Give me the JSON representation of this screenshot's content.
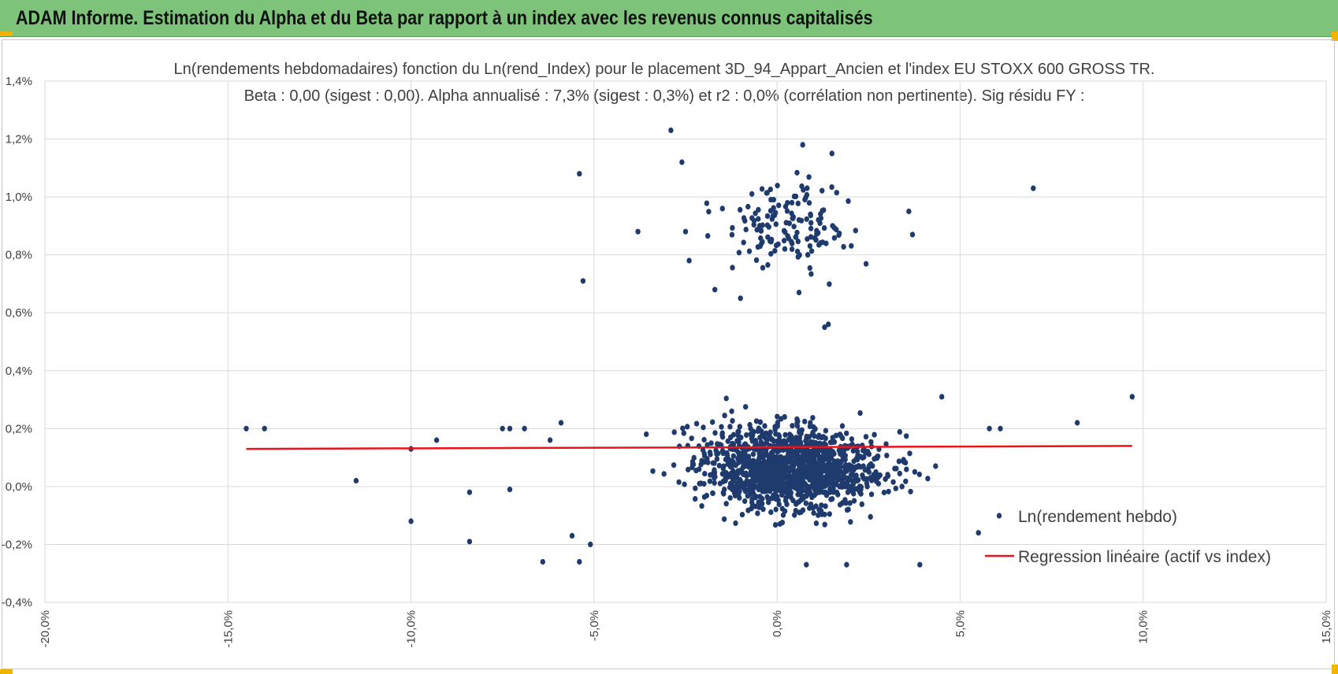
{
  "header": {
    "title": "ADAM Informe. Estimation du Alpha et du Beta par rapport à un index avec les revenus connus capitalisés"
  },
  "colors": {
    "header_bg": "#7dc47a",
    "points": "#1f3b6e",
    "regression": "#e8141b",
    "grid": "#d9d9d9",
    "corner": "#f0b400"
  },
  "chart_data": {
    "type": "scatter",
    "title": "Ln(rendements hebdomadaires) fonction du Ln(rend_Index) pour le placement 3D_94_Appart_Ancien et l'index EU STOXX 600 GROSS TR.",
    "subtitle": "Beta : 0,00 (sigest : 0,00). Alpha annualisé : 7,3% (sigest : 0,3%) et r2 : 0,0% (corrélation non pertinente). Sig résidu FY :",
    "xlabel": "",
    "ylabel": "",
    "xlim": [
      -20,
      15
    ],
    "ylim": [
      -0.4,
      1.4
    ],
    "x_ticks": [
      "-20,0%",
      "-15,0%",
      "-10,0%",
      "-5,0%",
      "0,0%",
      "5,0%",
      "10,0%",
      "15,0%"
    ],
    "y_ticks": [
      "-0,4%",
      "-0,2%",
      "0,0%",
      "0,2%",
      "0,4%",
      "0,6%",
      "0,8%",
      "1,0%",
      "1,2%",
      "1,4%"
    ],
    "grid": true,
    "legend_position": "bottom-right",
    "series": [
      {
        "name": "Ln(rendement hebdo)",
        "kind": "scatter",
        "points_sample": [
          [
            -14.5,
            0.2
          ],
          [
            -14.0,
            0.2
          ],
          [
            -11.5,
            0.02
          ],
          [
            -10.0,
            0.13
          ],
          [
            -10.0,
            -0.12
          ],
          [
            -9.3,
            0.16
          ],
          [
            -8.4,
            -0.02
          ],
          [
            -8.4,
            -0.19
          ],
          [
            -7.5,
            0.2
          ],
          [
            -7.3,
            0.2
          ],
          [
            -7.3,
            -0.01
          ],
          [
            -6.9,
            0.2
          ],
          [
            -6.4,
            -0.26
          ],
          [
            -6.2,
            0.16
          ],
          [
            -5.9,
            0.22
          ],
          [
            -5.6,
            -0.17
          ],
          [
            -5.4,
            1.08
          ],
          [
            -5.4,
            -0.26
          ],
          [
            -5.3,
            0.71
          ],
          [
            -5.1,
            -0.2
          ],
          [
            -3.8,
            0.88
          ],
          [
            -2.9,
            1.23
          ],
          [
            -2.6,
            1.12
          ],
          [
            -2.5,
            0.88
          ],
          [
            -2.4,
            0.78
          ],
          [
            -1.7,
            0.68
          ],
          [
            -1.0,
            0.65
          ],
          [
            0.6,
            0.67
          ],
          [
            1.3,
            0.55
          ],
          [
            1.4,
            0.56
          ],
          [
            0.7,
            1.18
          ],
          [
            1.5,
            1.15
          ],
          [
            3.6,
            0.95
          ],
          [
            3.7,
            0.87
          ],
          [
            4.5,
            0.31
          ],
          [
            5.5,
            -0.16
          ],
          [
            5.8,
            0.2
          ],
          [
            6.1,
            0.2
          ],
          [
            7.0,
            1.03
          ],
          [
            8.2,
            0.22
          ],
          [
            9.7,
            0.31
          ],
          [
            0.8,
            -0.27
          ],
          [
            1.9,
            -0.27
          ],
          [
            3.9,
            -0.27
          ]
        ]
      },
      {
        "name": "Regression linéaire (actif vs index)",
        "kind": "line",
        "x": [
          -14.5,
          9.7
        ],
        "y": [
          0.13,
          0.14
        ]
      }
    ]
  }
}
